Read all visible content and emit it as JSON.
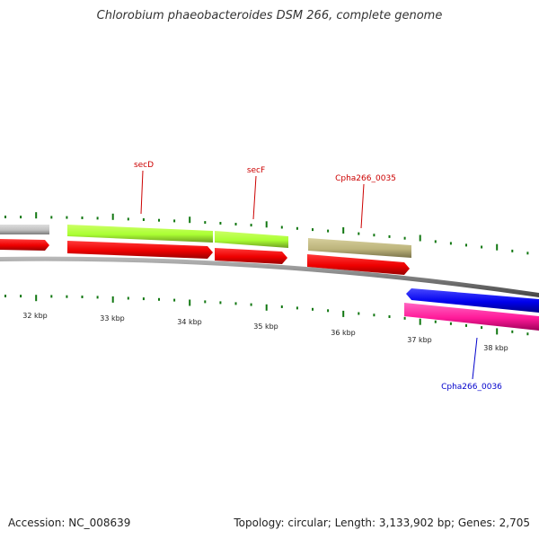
{
  "title": "Chlorobium phaeobacteroides DSM 266, complete genome",
  "footer": {
    "accession": "Accession: NC_008639",
    "topology": "Topology: circular; Length: 3,133,902 bp; Genes: 2,705"
  },
  "kbp_labels": [
    "32 kbp",
    "33 kbp",
    "34 kbp",
    "35 kbp",
    "36 kbp",
    "37 kbp",
    "38 kbp"
  ],
  "gene_labels": [
    {
      "name": "secD",
      "color": "#cc0000"
    },
    {
      "name": "secF",
      "color": "#cc0000"
    },
    {
      "name": "Cpha266_0035",
      "color": "#cc0000"
    },
    {
      "name": "Cpha266_0036",
      "color": "#0000cc"
    }
  ],
  "colors": {
    "backbone": "#808080",
    "cds_red": "#ee0000",
    "cds_green": "#aaff33",
    "cds_gray": "#c0c0c0",
    "cds_olive": "#bdb47c",
    "cds_blue": "#0000ee",
    "cds_pink": "#ff1a99",
    "ticks": "#117711"
  }
}
